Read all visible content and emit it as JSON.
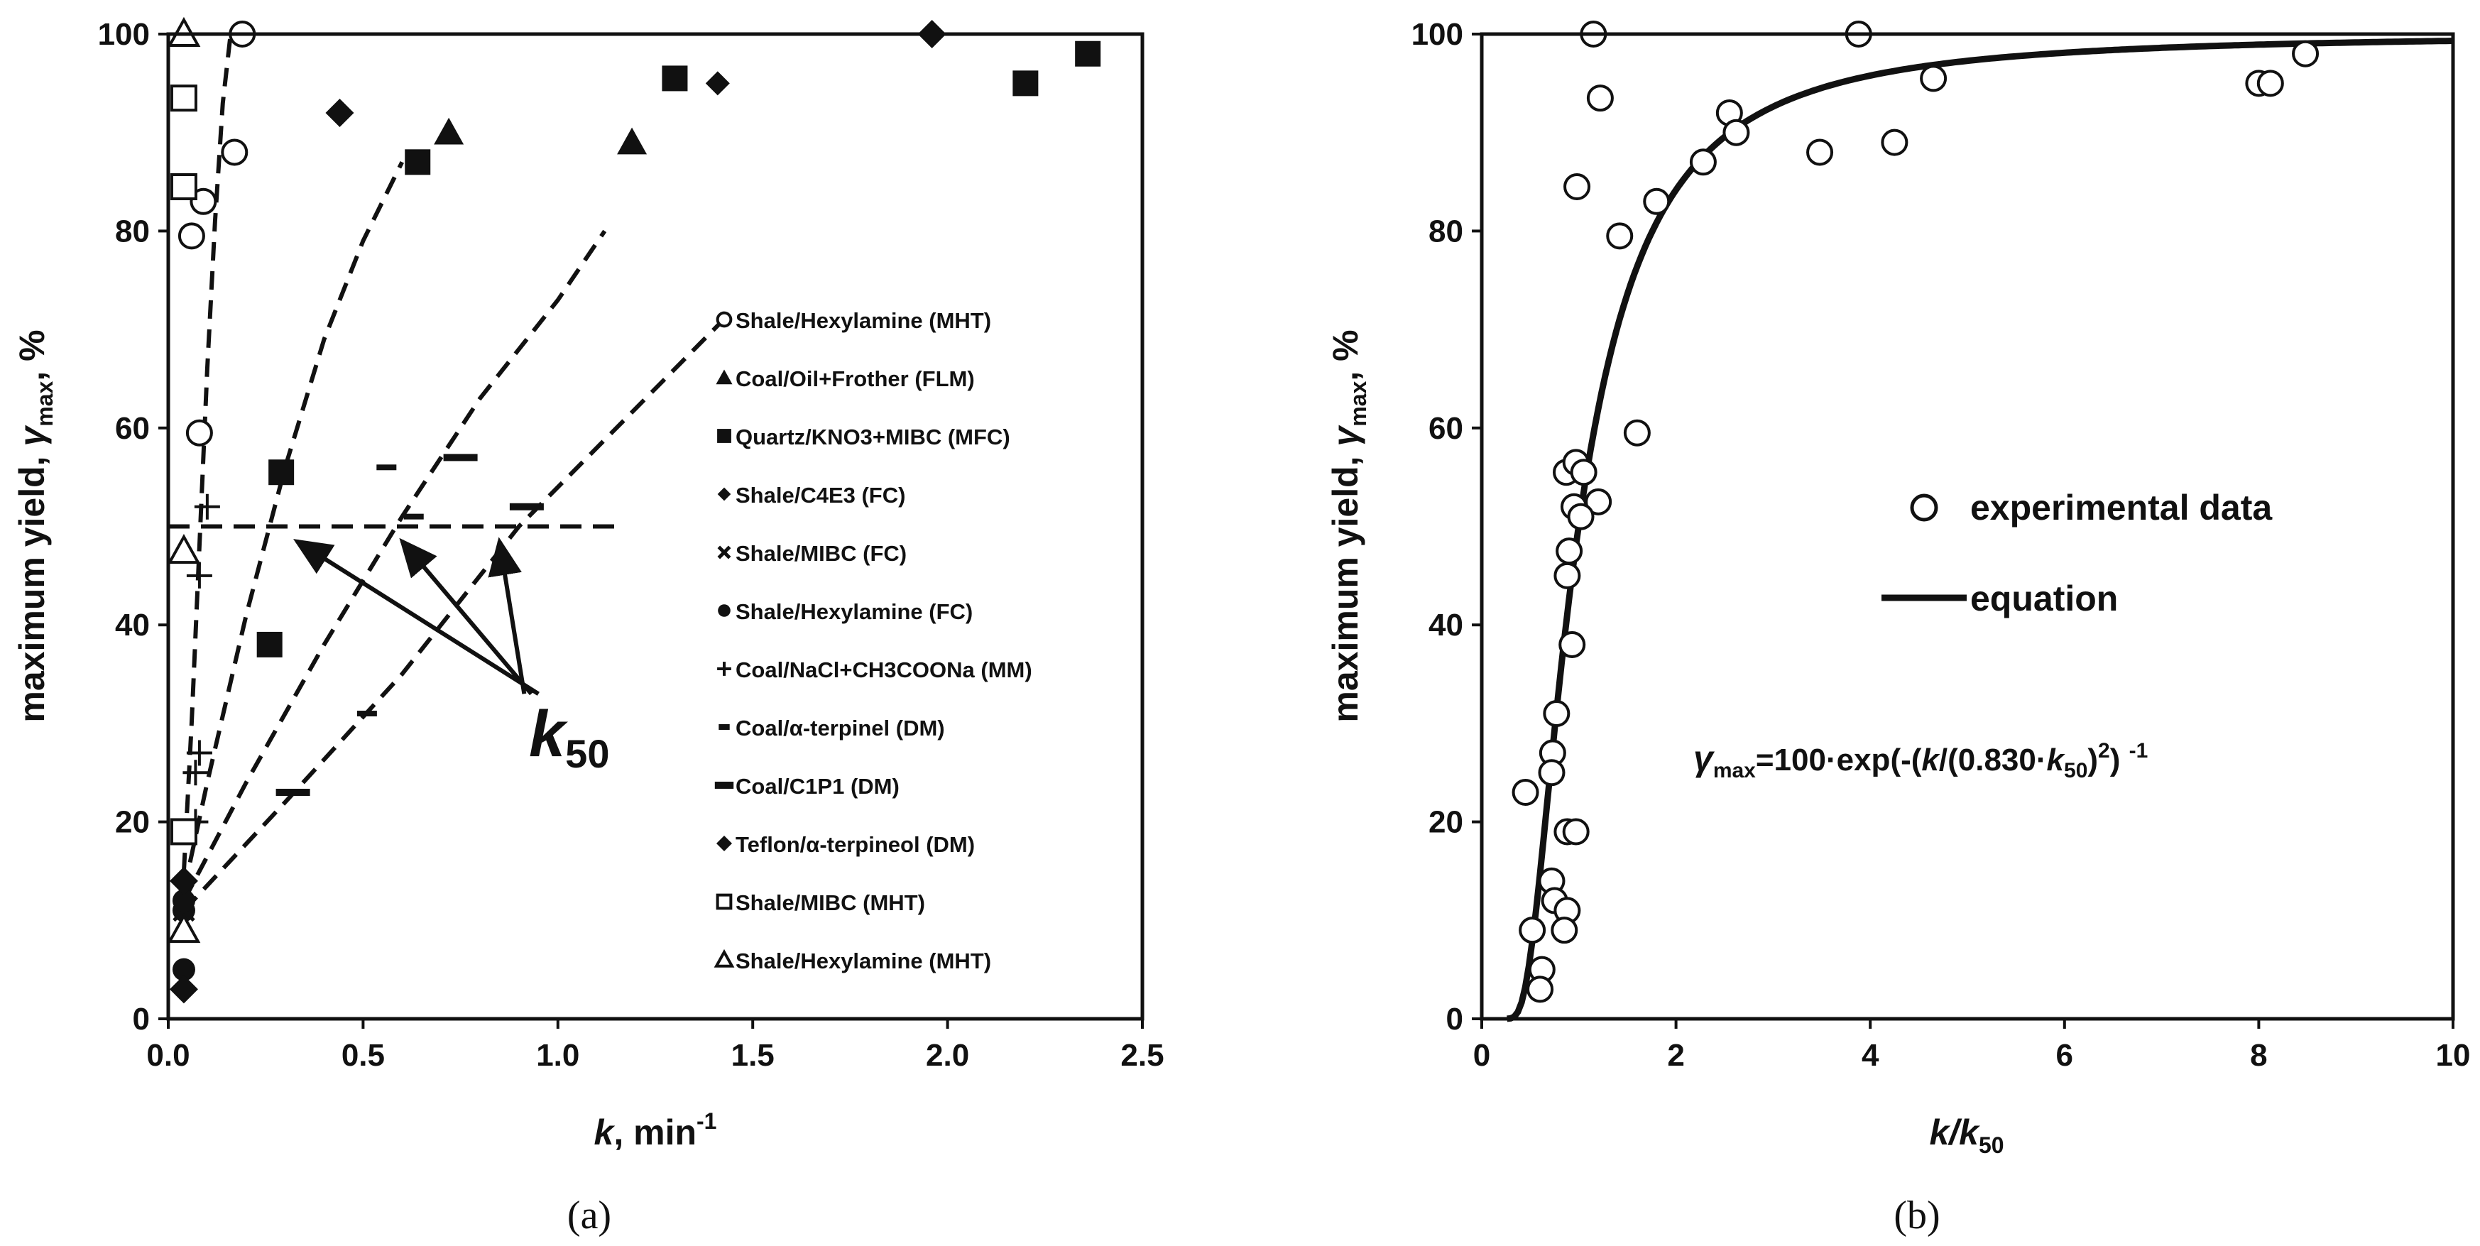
{
  "chart_data": [
    {
      "type": "scatter",
      "panel_label": "(a)",
      "xlabel": {
        "main": "k",
        "unit": ", min",
        "sup": "-1"
      },
      "ylabel": {
        "main": "maximum yield, ",
        "sym": "γ",
        "sub": "max",
        "unit": ", %"
      },
      "xlim": [
        0,
        2.5
      ],
      "ylim": [
        0,
        100
      ],
      "xticks": [
        "0.0",
        "0.5",
        "1.0",
        "1.5",
        "2.0",
        "2.5"
      ],
      "yticks": [
        "0",
        "20",
        "40",
        "60",
        "80",
        "100"
      ],
      "xtick_values": [
        0,
        0.5,
        1,
        1.5,
        2,
        2.5
      ],
      "ytick_values": [
        0,
        20,
        40,
        60,
        80,
        100
      ],
      "annotation": {
        "base": "k",
        "sub": "50"
      },
      "k50_arrow_targets": [
        [
          0.33,
          48.5
        ],
        [
          0.6,
          48.5
        ],
        [
          0.85,
          48.5
        ]
      ],
      "k50_arrow_origin": [
        0.95,
        33
      ],
      "reference_line": {
        "y": 50,
        "x_range": [
          0,
          1.17
        ]
      },
      "fit_curves": [
        {
          "x": [
            0.04,
            0.06,
            0.08,
            0.1,
            0.12,
            0.14,
            0.16
          ],
          "y": [
            15,
            30,
            48,
            66,
            81,
            93,
            100
          ]
        },
        {
          "x": [
            0.04,
            0.1,
            0.2,
            0.3,
            0.4,
            0.5,
            0.6
          ],
          "y": [
            13,
            24,
            41,
            56,
            69,
            79,
            87
          ]
        },
        {
          "x": [
            0.04,
            0.2,
            0.4,
            0.6,
            0.8,
            1.0,
            1.12
          ],
          "y": [
            12,
            24,
            38,
            51,
            63,
            73,
            80
          ]
        },
        {
          "x": [
            0.04,
            0.3,
            0.6,
            0.9,
            1.2,
            1.45
          ],
          "y": [
            11,
            22,
            35,
            50,
            62,
            72
          ]
        }
      ],
      "series": [
        {
          "name": "Shale/Hexylamine (MHT)",
          "marker": "circle-open",
          "x": [
            0.19,
            0.17,
            0.09,
            0.06,
            0.08
          ],
          "y": [
            100,
            88,
            83,
            79.5,
            59.5
          ]
        },
        {
          "name": "Coal/Oil+Frother (FLM)",
          "marker": "triangle-filled",
          "x": [
            0.72,
            1.19
          ],
          "y": [
            90,
            89
          ]
        },
        {
          "name": "Quartz/KNO3+MIBC (MFC)",
          "marker": "square-filled",
          "x": [
            0.64,
            0.29,
            0.26,
            1.3,
            2.2,
            2.36
          ],
          "y": [
            87,
            55.5,
            38,
            95.5,
            95,
            98
          ]
        },
        {
          "name": "Shale/C4E3 (FC)",
          "marker": "diamond-filled-small",
          "x": [
            1.41
          ],
          "y": [
            95
          ]
        },
        {
          "name": "Shale/MIBC (FC)",
          "marker": "x",
          "x": [
            0.04
          ],
          "y": [
            11
          ]
        },
        {
          "name": "Shale/Hexylamine (FC)",
          "marker": "circle-filled",
          "x": [
            0.04,
            0.04,
            0.04
          ],
          "y": [
            5,
            11,
            12
          ]
        },
        {
          "name": "Coal/NaCl+CH3COONa (MM)",
          "marker": "plus",
          "x": [
            0.1,
            0.08,
            0.08,
            0.07,
            0.07
          ],
          "y": [
            52,
            45,
            27,
            25,
            20
          ]
        },
        {
          "name": "Coal/α-terpinel (DM)",
          "marker": "dash-short",
          "x": [
            0.56,
            0.63,
            0.51
          ],
          "y": [
            56,
            51,
            31
          ]
        },
        {
          "name": "Coal/C1P1 (DM)",
          "marker": "dash-long",
          "x": [
            0.75,
            0.92,
            0.32
          ],
          "y": [
            57,
            52,
            23
          ]
        },
        {
          "name": "Teflon/α-terpineol (DM)",
          "marker": "diamond-filled",
          "x": [
            0.44,
            1.96,
            0.04,
            0.04
          ],
          "y": [
            92,
            100,
            14,
            3
          ]
        },
        {
          "name": "Shale/MIBC (MHT)",
          "marker": "square-open",
          "x": [
            0.04,
            0.04,
            0.04
          ],
          "y": [
            93.5,
            84.5,
            19
          ]
        },
        {
          "name": "Shale/Hexylamine (MHT)",
          "marker": "triangle-open",
          "x": [
            0.04,
            0.04,
            0.04
          ],
          "y": [
            100,
            47.5,
            9
          ]
        }
      ]
    },
    {
      "type": "scatter",
      "panel_label": "(b)",
      "xlabel": {
        "main": "k/k",
        "sub": "50"
      },
      "ylabel": {
        "main": "maximum yield, ",
        "sym": "γ",
        "sub": "max",
        "unit": ", %"
      },
      "xlim": [
        0,
        10
      ],
      "ylim": [
        0,
        100
      ],
      "xticks": [
        "0",
        "2",
        "4",
        "6",
        "8",
        "10"
      ],
      "yticks": [
        "0",
        "20",
        "40",
        "60",
        "80",
        "100"
      ],
      "xtick_values": [
        0,
        2,
        4,
        6,
        8,
        10
      ],
      "ytick_values": [
        0,
        20,
        40,
        60,
        80,
        100
      ],
      "legend": [
        {
          "label": "experimental data",
          "marker": "circle-open"
        },
        {
          "label": "equation",
          "marker": "line"
        }
      ],
      "equation": {
        "lhs": "γ",
        "lhs_sub": "max",
        "rhs_a": "=100·exp(-(",
        "k": "k",
        "rhs_b": "/(0.830·",
        "k50": "k",
        "k50_sub": "50",
        "rhs_c": ")",
        "sq": "2",
        "rhs_d": ") ",
        "inv": "-1"
      },
      "equation_curve": {
        "a": 0.83,
        "x_start": 0.26,
        "x_end": 10
      },
      "series": [
        {
          "name": "experimental data",
          "marker": "circle-open",
          "x": [
            1.15,
            1.22,
            3.88,
            2.55,
            2.62,
            4.65,
            2.28,
            1.8,
            3.48,
            4.25,
            8.0,
            8.12,
            8.48,
            0.98,
            1.42,
            1.6,
            0.87,
            0.97,
            1.05,
            0.95,
            1.2,
            1.02,
            0.9,
            0.88,
            0.93,
            0.77,
            0.73,
            0.72,
            0.88,
            0.97,
            0.72,
            0.75,
            0.88,
            0.85,
            0.45,
            0.52,
            0.62,
            0.6
          ],
          "y": [
            100,
            93.5,
            100,
            92,
            90,
            95.5,
            87,
            83,
            88,
            89,
            95,
            95,
            98,
            84.5,
            79.5,
            59.5,
            55.5,
            56.5,
            55.5,
            52,
            52.5,
            51,
            47.5,
            45,
            38,
            31,
            27,
            25,
            19,
            19,
            14,
            12,
            11,
            9,
            23,
            9,
            5,
            3
          ]
        },
        {
          "name": "equation",
          "marker": "line"
        }
      ]
    }
  ]
}
